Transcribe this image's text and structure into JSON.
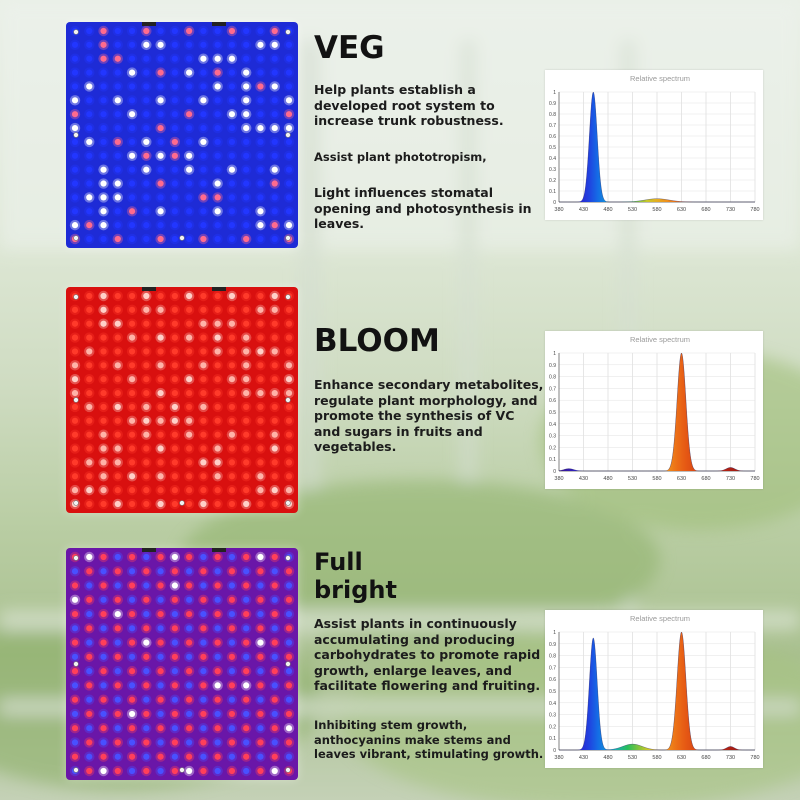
{
  "sections": [
    {
      "id": "veg",
      "heading": "VEG",
      "paragraphs": [
        "Help plants establish a developed root system to increase trunk robustness.",
        "Assist plant phototropism,",
        "Light influences stomatal opening and photosynthesis in leaves."
      ],
      "panel_colors": [
        "#2236ff",
        "#ffffff",
        "#ff6b8e"
      ],
      "panel_background": "#1e2bd6",
      "chart_data": {
        "type": "area",
        "title": "Relative spectrum",
        "x_ticks": [
          "380",
          "430",
          "480",
          "530",
          "580",
          "630",
          "680",
          "730",
          "780"
        ],
        "y_ticks": [
          "0",
          "0.1",
          "0.2",
          "0.3",
          "0.4",
          "0.5",
          "0.6",
          "0.7",
          "0.8",
          "0.9",
          "1"
        ],
        "xlim": [
          380,
          780
        ],
        "ylim": [
          0,
          1
        ],
        "peaks": [
          {
            "center": 450,
            "height": 1.0,
            "width": 8
          },
          {
            "center": 580,
            "height": 0.03,
            "width": 25
          }
        ]
      }
    },
    {
      "id": "bloom",
      "heading": "BLOOM",
      "paragraphs": [
        "Enhance secondary metabolites, regulate plant morphology, and promote the synthesis of VC and sugars in fruits and vegetables."
      ],
      "panel_colors": [
        "#ff3a2a",
        "#ffb3a8",
        "#ffd0c8"
      ],
      "panel_background": "#d9100f",
      "chart_data": {
        "type": "area",
        "title": "Relative spectrum",
        "x_ticks": [
          "380",
          "430",
          "480",
          "530",
          "580",
          "630",
          "680",
          "730",
          "780"
        ],
        "y_ticks": [
          "0",
          "0.1",
          "0.2",
          "0.3",
          "0.4",
          "0.5",
          "0.6",
          "0.7",
          "0.8",
          "0.9",
          "1"
        ],
        "xlim": [
          380,
          780
        ],
        "ylim": [
          0,
          1
        ],
        "peaks": [
          {
            "center": 400,
            "height": 0.02,
            "width": 10
          },
          {
            "center": 630,
            "height": 1.0,
            "width": 9
          },
          {
            "center": 730,
            "height": 0.03,
            "width": 9
          }
        ]
      }
    },
    {
      "id": "full",
      "heading": "Full bright",
      "paragraphs": [
        "Assist plants in continuously accumulating and producing carbohydrates to promote rapid growth, enlarge leaves, and facilitate flowering and fruiting.",
        "Inhibiting stem growth, anthocyanins make stems and leaves vibrant, stimulating growth."
      ],
      "panel_colors": [
        "#ff3f5a",
        "#4950ff",
        "#ffffff"
      ],
      "panel_background": "#6a16a8",
      "chart_data": {
        "type": "area",
        "title": "Relative spectrum",
        "x_ticks": [
          "380",
          "430",
          "480",
          "530",
          "580",
          "630",
          "680",
          "730",
          "780"
        ],
        "y_ticks": [
          "0",
          "0.1",
          "0.2",
          "0.3",
          "0.4",
          "0.5",
          "0.6",
          "0.7",
          "0.8",
          "0.9",
          "1"
        ],
        "xlim": [
          380,
          780
        ],
        "ylim": [
          0,
          1
        ],
        "peaks": [
          {
            "center": 450,
            "height": 0.95,
            "width": 8
          },
          {
            "center": 530,
            "height": 0.05,
            "width": 20
          },
          {
            "center": 630,
            "height": 1.0,
            "width": 9
          },
          {
            "center": 730,
            "height": 0.03,
            "width": 8
          }
        ]
      }
    }
  ]
}
